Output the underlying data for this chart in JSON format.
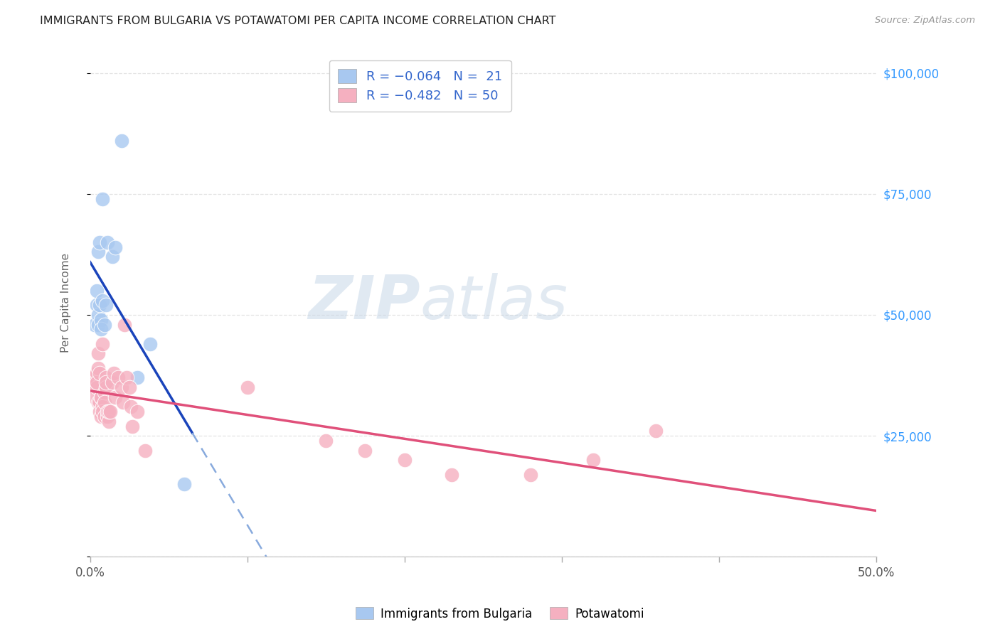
{
  "title": "IMMIGRANTS FROM BULGARIA VS POTAWATOMI PER CAPITA INCOME CORRELATION CHART",
  "source": "Source: ZipAtlas.com",
  "ylabel": "Per Capita Income",
  "xlim": [
    0,
    0.5
  ],
  "ylim": [
    0,
    105000
  ],
  "yticks": [
    0,
    25000,
    50000,
    75000,
    100000
  ],
  "ytick_labels": [
    "",
    "$25,000",
    "$50,000",
    "$75,000",
    "$100,000"
  ],
  "xticks": [
    0.0,
    0.1,
    0.2,
    0.3,
    0.4,
    0.5
  ],
  "xtick_labels": [
    "0.0%",
    "",
    "",
    "",
    "",
    "50.0%"
  ],
  "watermark_zip": "ZIP",
  "watermark_atlas": "atlas",
  "blue_color": "#a8c8f0",
  "pink_color": "#f5b0c0",
  "blue_line_color": "#1a44bb",
  "blue_dash_color": "#88aadd",
  "pink_line_color": "#e0507a",
  "blue_scatter": [
    [
      0.003,
      48000
    ],
    [
      0.004,
      52000
    ],
    [
      0.004,
      55000
    ],
    [
      0.005,
      63000
    ],
    [
      0.005,
      50000
    ],
    [
      0.005,
      48000
    ],
    [
      0.006,
      52000
    ],
    [
      0.006,
      65000
    ],
    [
      0.007,
      49000
    ],
    [
      0.007,
      47000
    ],
    [
      0.008,
      53000
    ],
    [
      0.008,
      74000
    ],
    [
      0.009,
      48000
    ],
    [
      0.01,
      52000
    ],
    [
      0.011,
      65000
    ],
    [
      0.014,
      62000
    ],
    [
      0.016,
      64000
    ],
    [
      0.02,
      86000
    ],
    [
      0.03,
      37000
    ],
    [
      0.038,
      44000
    ],
    [
      0.06,
      15000
    ]
  ],
  "pink_scatter": [
    [
      0.002,
      37000
    ],
    [
      0.003,
      36000
    ],
    [
      0.003,
      33000
    ],
    [
      0.004,
      35000
    ],
    [
      0.004,
      38000
    ],
    [
      0.004,
      36000
    ],
    [
      0.005,
      39000
    ],
    [
      0.005,
      32000
    ],
    [
      0.005,
      42000
    ],
    [
      0.006,
      38000
    ],
    [
      0.006,
      32000
    ],
    [
      0.006,
      30000
    ],
    [
      0.007,
      29000
    ],
    [
      0.007,
      33000
    ],
    [
      0.007,
      33000
    ],
    [
      0.008,
      44000
    ],
    [
      0.008,
      31000
    ],
    [
      0.008,
      30000
    ],
    [
      0.009,
      34000
    ],
    [
      0.009,
      32000
    ],
    [
      0.009,
      29000
    ],
    [
      0.01,
      37000
    ],
    [
      0.01,
      35000
    ],
    [
      0.01,
      36000
    ],
    [
      0.011,
      29000
    ],
    [
      0.011,
      30000
    ],
    [
      0.012,
      28000
    ],
    [
      0.012,
      30000
    ],
    [
      0.013,
      30000
    ],
    [
      0.014,
      36000
    ],
    [
      0.015,
      38000
    ],
    [
      0.016,
      33000
    ],
    [
      0.018,
      37000
    ],
    [
      0.02,
      35000
    ],
    [
      0.021,
      32000
    ],
    [
      0.022,
      48000
    ],
    [
      0.023,
      37000
    ],
    [
      0.025,
      35000
    ],
    [
      0.026,
      31000
    ],
    [
      0.027,
      27000
    ],
    [
      0.03,
      30000
    ],
    [
      0.035,
      22000
    ],
    [
      0.1,
      35000
    ],
    [
      0.15,
      24000
    ],
    [
      0.175,
      22000
    ],
    [
      0.2,
      20000
    ],
    [
      0.23,
      17000
    ],
    [
      0.28,
      17000
    ],
    [
      0.32,
      20000
    ],
    [
      0.36,
      26000
    ]
  ],
  "background_color": "#ffffff",
  "grid_color": "#dddddd"
}
